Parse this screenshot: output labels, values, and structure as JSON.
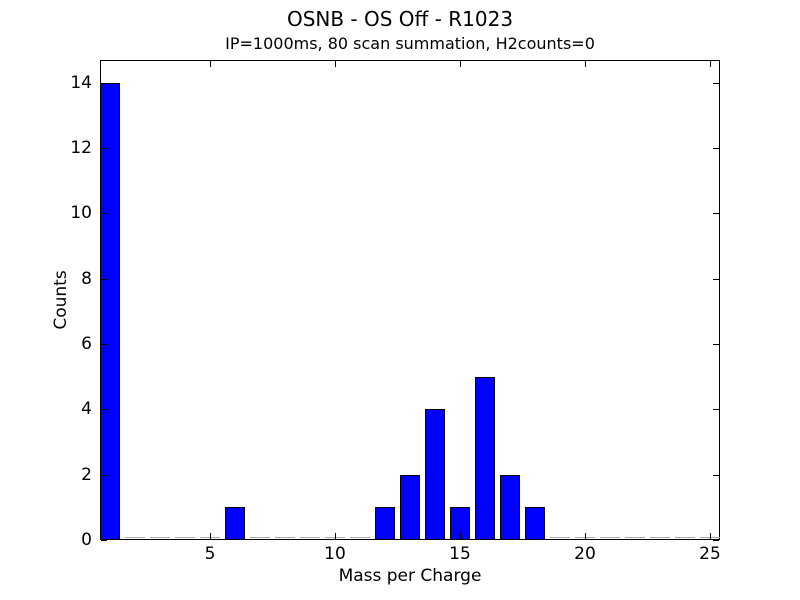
{
  "chart_data": {
    "type": "bar",
    "title": "OSNB - OS Off - R1023",
    "subtitle": "IP=1000ms, 80 scan summation, H2counts=0",
    "xlabel": "Mass per Charge",
    "ylabel": "Counts",
    "categories": [
      1,
      2,
      3,
      4,
      5,
      6,
      7,
      8,
      9,
      10,
      11,
      12,
      13,
      14,
      15,
      16,
      17,
      18,
      19,
      20,
      21,
      22,
      23,
      24,
      25
    ],
    "values": [
      14,
      0,
      0,
      0,
      0,
      1,
      0,
      0,
      0,
      0,
      0,
      1,
      2,
      4,
      1,
      5,
      2,
      1,
      0,
      0,
      0,
      0,
      0,
      0,
      0
    ],
    "bar_width": 0.8,
    "xlim": [
      0.6,
      25.4
    ],
    "ylim": [
      0,
      14.7
    ],
    "xticks": [
      5,
      10,
      15,
      20,
      25
    ],
    "yticks": [
      0,
      2,
      4,
      6,
      8,
      10,
      12,
      14
    ],
    "grid": false,
    "legend_position": "none",
    "tick_style": "inward-all-four-sides",
    "colors": {
      "bar_fill": "#0000ff",
      "bar_edge": "#000000",
      "zero_bar_edge": "#a8a8a8",
      "axes": "#000000",
      "text": "#000000",
      "background": "#ffffff"
    }
  }
}
